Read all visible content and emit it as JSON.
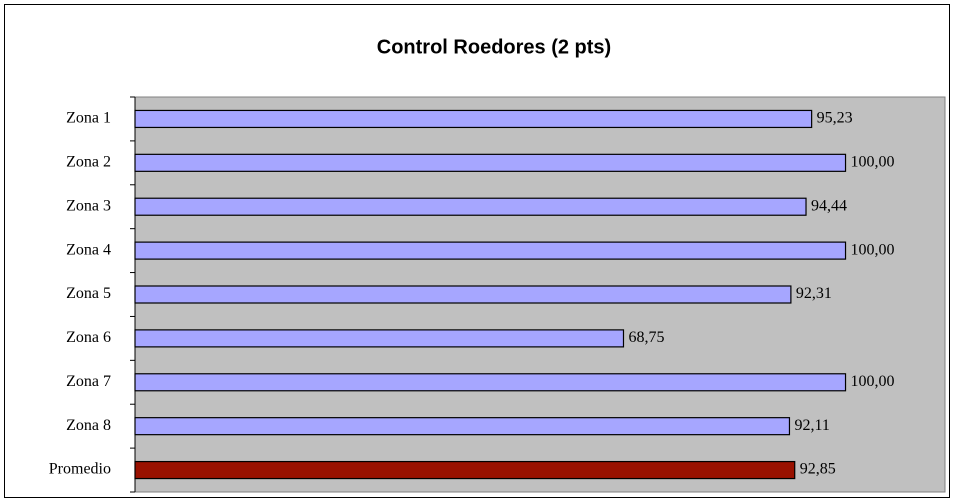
{
  "chart_data": {
    "type": "bar",
    "orientation": "horizontal",
    "title": "Control Roedores (2 pts)",
    "categories": [
      "Zona 1",
      "Zona 2",
      "Zona 3",
      "Zona 4",
      "Zona 5",
      "Zona 6",
      "Zona 7",
      "Zona 8",
      "Promedio"
    ],
    "values": [
      95.23,
      100,
      94.44,
      100,
      92.31,
      68.75,
      100,
      92.11,
      92.85
    ],
    "value_labels": [
      "95,23",
      "100,00",
      "94,44",
      "100,00",
      "92,31",
      "68,75",
      "100,00",
      "92,11",
      "92,85"
    ],
    "colors": [
      "#a6a6ff",
      "#a6a6ff",
      "#a6a6ff",
      "#a6a6ff",
      "#a6a6ff",
      "#a6a6ff",
      "#a6a6ff",
      "#a6a6ff",
      "#991100"
    ],
    "xlim": [
      0,
      114
    ],
    "plot_background": "#c0c0c0"
  }
}
